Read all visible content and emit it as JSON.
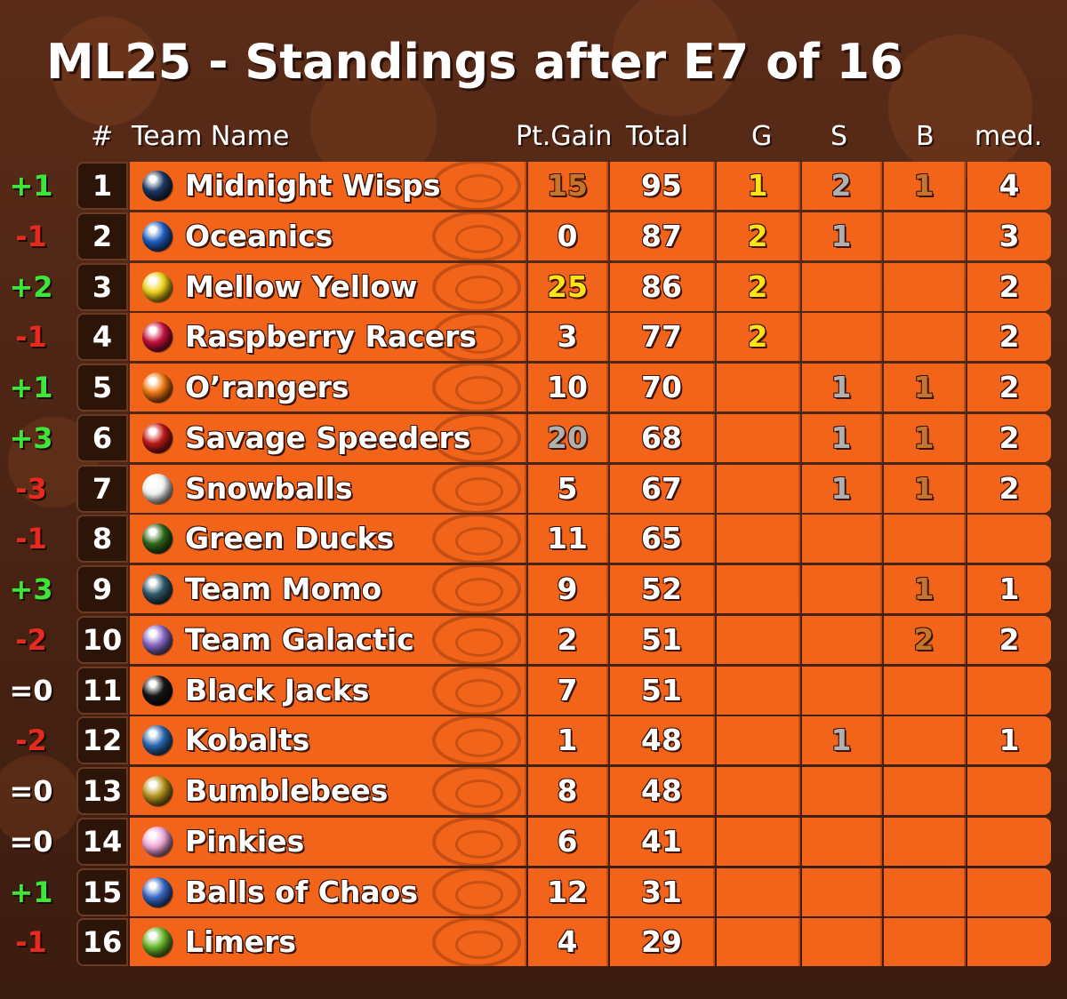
{
  "title": "ML25 - Standings after E7 of 16",
  "headers": {
    "rank": "#",
    "team": "Team Name",
    "gain": "Pt.Gain",
    "total": "Total",
    "g": "G",
    "s": "S",
    "b": "B",
    "med": "med."
  },
  "colors": {
    "up": "#3ee63a",
    "down": "#e82a1e",
    "gold": "#ffe21a",
    "silver": "#b0b0b0",
    "bronze": "#c5762c",
    "row": "#f2641a"
  },
  "rows": [
    {
      "change": "+1",
      "rank": "1",
      "team": "Midnight Wisps",
      "gain": "15",
      "total": "95",
      "g": "1",
      "s": "2",
      "b": "1",
      "med": "4",
      "ball": "#1d3a66",
      "gain_style": "bronze"
    },
    {
      "change": "-1",
      "rank": "2",
      "team": "Oceanics",
      "gain": "0",
      "total": "87",
      "g": "2",
      "s": "1",
      "b": "",
      "med": "3",
      "ball": "#1f5fc4",
      "gain_style": ""
    },
    {
      "change": "+2",
      "rank": "3",
      "team": "Mellow Yellow",
      "gain": "25",
      "total": "86",
      "g": "2",
      "s": "",
      "b": "",
      "med": "2",
      "ball": "#f2d21a",
      "gain_style": "gold"
    },
    {
      "change": "-1",
      "rank": "4",
      "team": "Raspberry Racers",
      "gain": "3",
      "total": "77",
      "g": "2",
      "s": "",
      "b": "",
      "med": "2",
      "ball": "#c8123e",
      "gain_style": ""
    },
    {
      "change": "+1",
      "rank": "5",
      "team": "O’rangers",
      "gain": "10",
      "total": "70",
      "g": "",
      "s": "1",
      "b": "1",
      "med": "2",
      "ball": "#f27a12",
      "gain_style": ""
    },
    {
      "change": "+3",
      "rank": "6",
      "team": "Savage Speeders",
      "gain": "20",
      "total": "68",
      "g": "",
      "s": "1",
      "b": "1",
      "med": "2",
      "ball": "#c41a1a",
      "gain_style": "silver"
    },
    {
      "change": "-3",
      "rank": "7",
      "team": "Snowballs",
      "gain": "5",
      "total": "67",
      "g": "",
      "s": "1",
      "b": "1",
      "med": "2",
      "ball": "#f4f4f4",
      "gain_style": ""
    },
    {
      "change": "-1",
      "rank": "8",
      "team": "Green Ducks",
      "gain": "11",
      "total": "65",
      "g": "",
      "s": "",
      "b": "",
      "med": "",
      "ball": "#2f6a1a",
      "gain_style": ""
    },
    {
      "change": "+3",
      "rank": "9",
      "team": "Team Momo",
      "gain": "9",
      "total": "52",
      "g": "",
      "s": "",
      "b": "1",
      "med": "1",
      "ball": "#2e5a6a",
      "gain_style": ""
    },
    {
      "change": "-2",
      "rank": "10",
      "team": "Team Galactic",
      "gain": "2",
      "total": "51",
      "g": "",
      "s": "",
      "b": "2",
      "med": "2",
      "ball": "#8a6ac8",
      "gain_style": ""
    },
    {
      "change": "=0",
      "rank": "11",
      "team": "Black Jacks",
      "gain": "7",
      "total": "51",
      "g": "",
      "s": "",
      "b": "",
      "med": "",
      "ball": "#151515",
      "gain_style": ""
    },
    {
      "change": "-2",
      "rank": "12",
      "team": "Kobalts",
      "gain": "1",
      "total": "48",
      "g": "",
      "s": "1",
      "b": "",
      "med": "1",
      "ball": "#2c6ab0",
      "gain_style": ""
    },
    {
      "change": "=0",
      "rank": "13",
      "team": "Bumblebees",
      "gain": "8",
      "total": "48",
      "g": "",
      "s": "",
      "b": "",
      "med": "",
      "ball": "#b8961e",
      "gain_style": ""
    },
    {
      "change": "=0",
      "rank": "14",
      "team": "Pinkies",
      "gain": "6",
      "total": "41",
      "g": "",
      "s": "",
      "b": "",
      "med": "",
      "ball": "#f2a8d8",
      "gain_style": ""
    },
    {
      "change": "+1",
      "rank": "15",
      "team": "Balls of Chaos",
      "gain": "12",
      "total": "31",
      "g": "",
      "s": "",
      "b": "",
      "med": "",
      "ball": "#3a6ac8",
      "gain_style": ""
    },
    {
      "change": "-1",
      "rank": "16",
      "team": "Limers",
      "gain": "4",
      "total": "29",
      "g": "",
      "s": "",
      "b": "",
      "med": "",
      "ball": "#6ab82a",
      "gain_style": ""
    }
  ]
}
